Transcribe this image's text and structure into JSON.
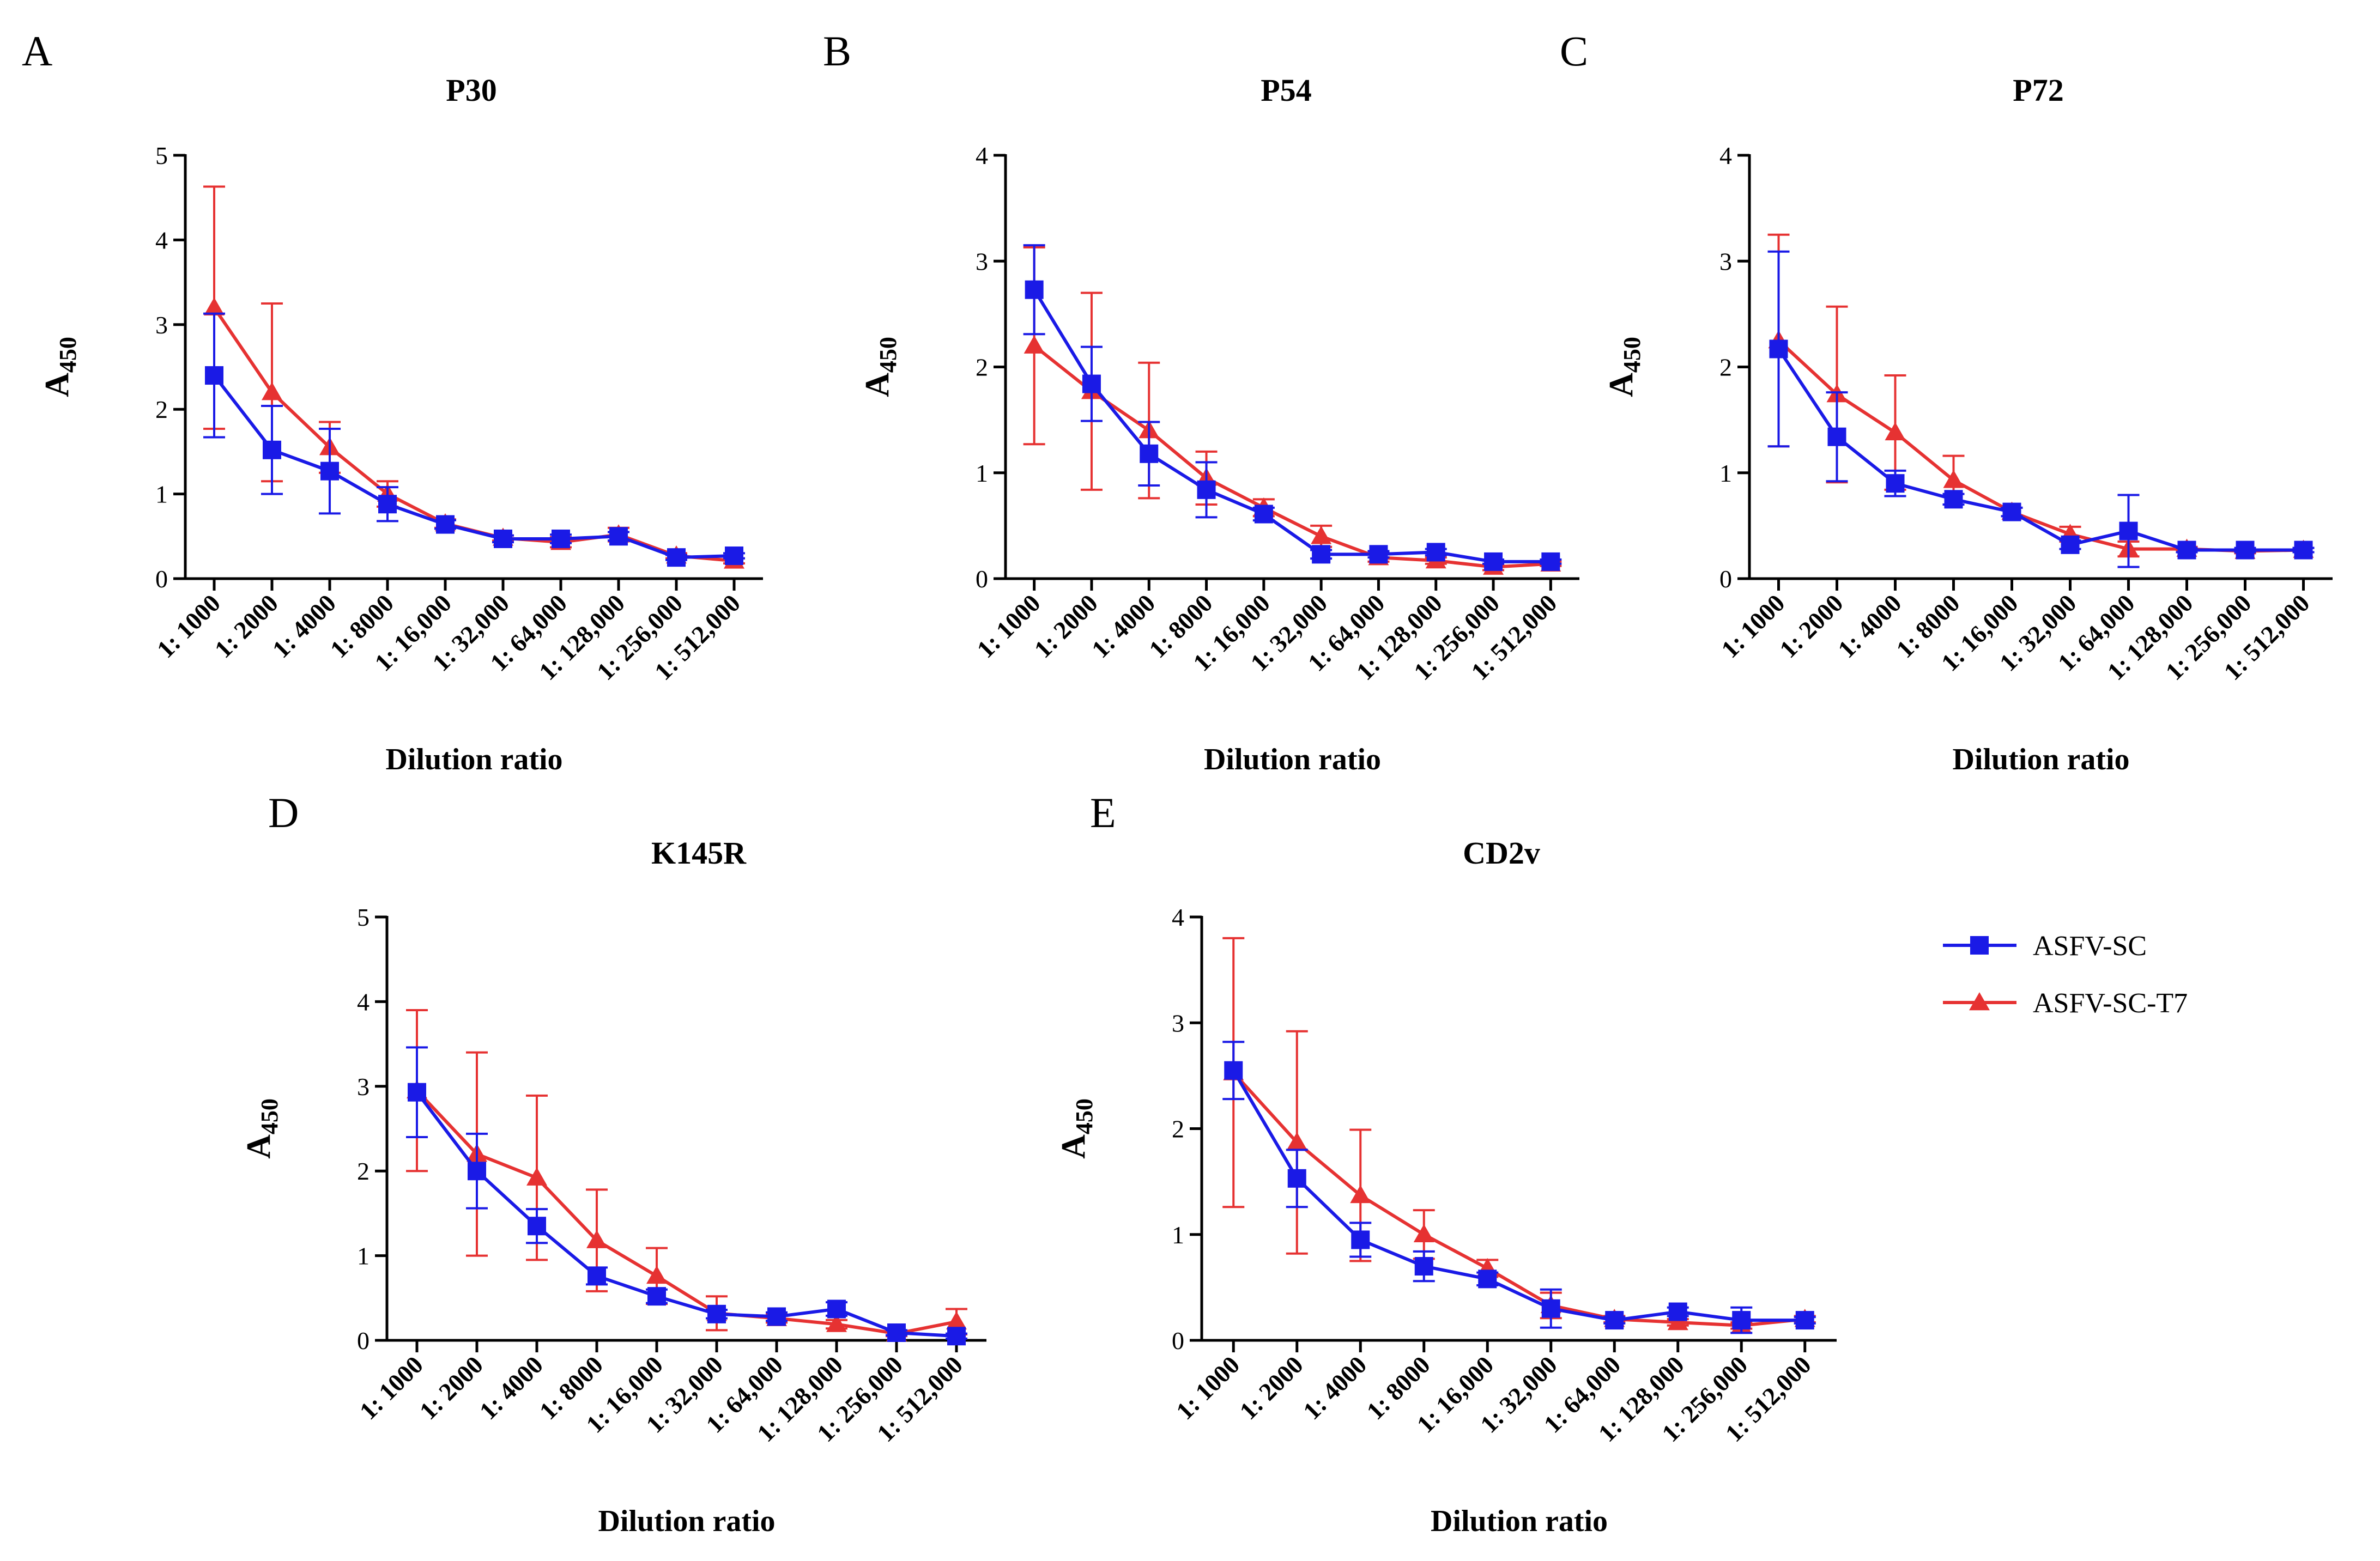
{
  "figure": {
    "background": "#ffffff"
  },
  "legend": [
    {
      "name": "ASFV-SC",
      "marker": "square",
      "color": "#1a1ae6"
    },
    {
      "name": "ASFV-SC-T7",
      "marker": "triangle",
      "color": "#e63232"
    }
  ],
  "chart_data": [
    {
      "panel": "A",
      "type": "line",
      "title": "P30",
      "xlabel": "Dilution ratio",
      "ylabel_main": "A",
      "ylabel_sub": "450",
      "ylim": [
        0,
        5
      ],
      "yticks": [
        "0",
        "1",
        "2",
        "3",
        "4",
        "5"
      ],
      "grid": false,
      "categories": [
        "1: 1000",
        "1: 2000",
        "1: 4000",
        "1: 8000",
        "1: 16,000",
        "1: 32,000",
        "1: 64,000",
        "1: 128,000",
        "1: 256,000",
        "1: 512,000"
      ],
      "series": [
        {
          "name": "ASFV-SC",
          "values": [
            2.4,
            1.52,
            1.27,
            0.88,
            0.64,
            0.47,
            0.47,
            0.5,
            0.25,
            0.27
          ],
          "errors": [
            0.73,
            0.52,
            0.5,
            0.2,
            0.05,
            0.04,
            0.05,
            0.05,
            0.03,
            0.03
          ]
        },
        {
          "name": "ASFV-SC-T7",
          "values": [
            3.2,
            2.2,
            1.55,
            1.0,
            0.65,
            0.48,
            0.43,
            0.52,
            0.27,
            0.21
          ],
          "errors": [
            1.43,
            1.05,
            0.3,
            0.15,
            0.05,
            0.03,
            0.06,
            0.08,
            0.03,
            0.03
          ]
        }
      ]
    },
    {
      "panel": "B",
      "type": "line",
      "title": "P54",
      "xlabel": "Dilution ratio",
      "ylabel_main": "A",
      "ylabel_sub": "450",
      "ylim": [
        0,
        4
      ],
      "yticks": [
        "0",
        "1",
        "2",
        "3",
        "4"
      ],
      "grid": false,
      "categories": [
        "1: 1000",
        "1: 2000",
        "1: 4000",
        "1: 8000",
        "1: 16,000",
        "1: 32,000",
        "1: 64,000",
        "1: 128,000",
        "1: 256,000",
        "1: 512,000"
      ],
      "series": [
        {
          "name": "ASFV-SC",
          "values": [
            2.73,
            1.84,
            1.18,
            0.84,
            0.61,
            0.23,
            0.23,
            0.25,
            0.16,
            0.16
          ],
          "errors": [
            0.42,
            0.35,
            0.3,
            0.26,
            0.06,
            0.04,
            0.03,
            0.03,
            0.02,
            0.02
          ]
        },
        {
          "name": "ASFV-SC-T7",
          "values": [
            2.2,
            1.77,
            1.4,
            0.95,
            0.67,
            0.4,
            0.2,
            0.17,
            0.11,
            0.14
          ],
          "errors": [
            0.93,
            0.93,
            0.64,
            0.25,
            0.08,
            0.1,
            0.04,
            0.03,
            0.03,
            0.02
          ]
        }
      ]
    },
    {
      "panel": "C",
      "type": "line",
      "title": "P72",
      "xlabel": "Dilution ratio",
      "ylabel_main": "A",
      "ylabel_sub": "450",
      "ylim": [
        0,
        4
      ],
      "yticks": [
        "0",
        "1",
        "2",
        "3",
        "4"
      ],
      "grid": false,
      "categories": [
        "1: 1000",
        "1: 2000",
        "1: 4000",
        "1: 8000",
        "1: 16,000",
        "1: 32,000",
        "1: 64,000",
        "1: 128,000",
        "1: 256,000",
        "1: 512,000"
      ],
      "series": [
        {
          "name": "ASFV-SC",
          "values": [
            2.17,
            1.34,
            0.9,
            0.75,
            0.63,
            0.32,
            0.45,
            0.27,
            0.27,
            0.27
          ],
          "errors": [
            0.92,
            0.42,
            0.12,
            0.05,
            0.04,
            0.04,
            0.34,
            0.02,
            0.02,
            0.02
          ]
        },
        {
          "name": "ASFV-SC-T7",
          "values": [
            2.25,
            1.74,
            1.38,
            0.93,
            0.63,
            0.42,
            0.28,
            0.28,
            0.26,
            0.27
          ],
          "errors": [
            1.0,
            0.83,
            0.54,
            0.23,
            0.04,
            0.07,
            0.07,
            0.02,
            0.02,
            0.02
          ]
        }
      ]
    },
    {
      "panel": "D",
      "type": "line",
      "title": "K145R",
      "xlabel": "Dilution ratio",
      "ylabel_main": "A",
      "ylabel_sub": "450",
      "ylim": [
        0,
        5
      ],
      "yticks": [
        "0",
        "1",
        "2",
        "3",
        "4",
        "5"
      ],
      "grid": false,
      "categories": [
        "1: 1000",
        "1: 2000",
        "1: 4000",
        "1: 8000",
        "1: 16,000",
        "1: 32,000",
        "1: 64,000",
        "1: 128,000",
        "1: 256,000",
        "1: 512,000"
      ],
      "series": [
        {
          "name": "ASFV-SC",
          "values": [
            2.93,
            2.0,
            1.35,
            0.76,
            0.52,
            0.31,
            0.28,
            0.37,
            0.09,
            0.05
          ],
          "errors": [
            0.53,
            0.44,
            0.2,
            0.1,
            0.08,
            0.05,
            0.05,
            0.08,
            0.03,
            0.03
          ]
        },
        {
          "name": "ASFV-SC-T7",
          "values": [
            2.95,
            2.2,
            1.92,
            1.18,
            0.76,
            0.32,
            0.26,
            0.19,
            0.08,
            0.22
          ],
          "errors": [
            0.95,
            1.2,
            0.97,
            0.6,
            0.33,
            0.2,
            0.05,
            0.05,
            0.03,
            0.15
          ]
        }
      ]
    },
    {
      "panel": "E",
      "type": "line",
      "title": "CD2v",
      "xlabel": "Dilution ratio",
      "ylabel_main": "A",
      "ylabel_sub": "450",
      "ylim": [
        0,
        4
      ],
      "yticks": [
        "0",
        "1",
        "2",
        "3",
        "4"
      ],
      "grid": false,
      "categories": [
        "1: 1000",
        "1: 2000",
        "1: 4000",
        "1: 8000",
        "1: 16,000",
        "1: 32,000",
        "1: 64,000",
        "1: 128,000",
        "1: 256,000",
        "1: 512,000"
      ],
      "series": [
        {
          "name": "ASFV-SC",
          "values": [
            2.55,
            1.53,
            0.95,
            0.7,
            0.58,
            0.3,
            0.19,
            0.27,
            0.19,
            0.19
          ],
          "errors": [
            0.27,
            0.27,
            0.16,
            0.14,
            0.06,
            0.18,
            0.03,
            0.04,
            0.12,
            0.03
          ]
        },
        {
          "name": "ASFV-SC-T7",
          "values": [
            2.53,
            1.87,
            1.37,
            1.0,
            0.68,
            0.33,
            0.2,
            0.17,
            0.14,
            0.2
          ],
          "errors": [
            1.27,
            1.05,
            0.62,
            0.23,
            0.08,
            0.12,
            0.03,
            0.03,
            0.03,
            0.03
          ]
        }
      ]
    }
  ]
}
